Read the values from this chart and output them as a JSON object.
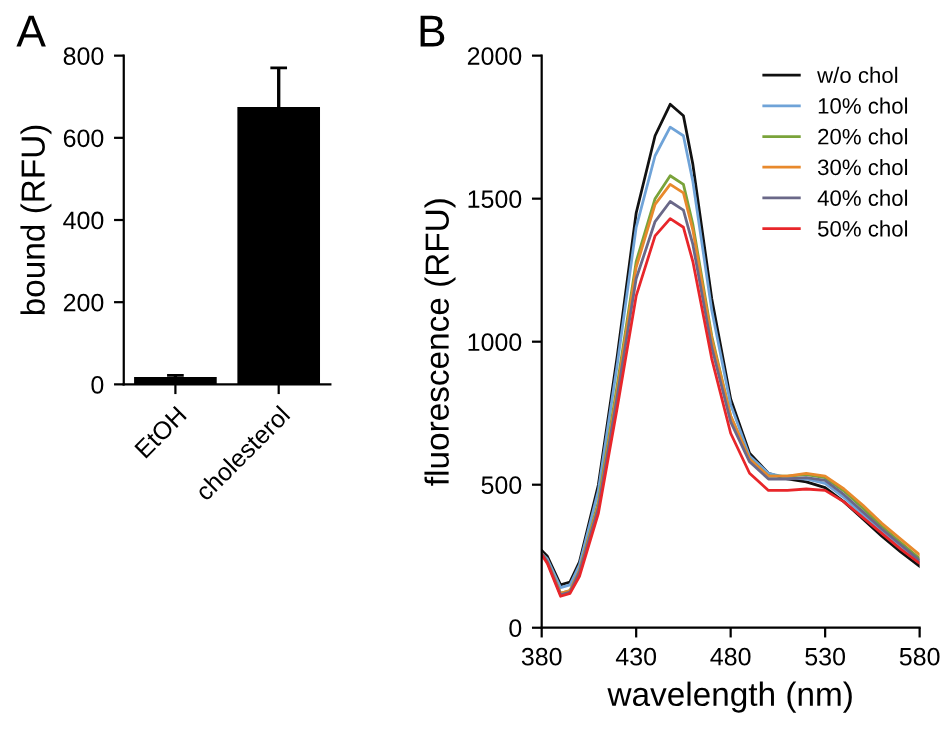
{
  "chart_data": [
    {
      "type": "bar",
      "ylabel": "bound (RFU)",
      "annotations": [
        "A"
      ],
      "categories": [
        "EtOH",
        "cholesterol"
      ],
      "values": [
        18,
        675
      ],
      "errors": [
        4,
        95
      ],
      "color": "#000000",
      "ylim": [
        0,
        800
      ],
      "yticks": [
        0,
        200,
        400,
        600,
        800
      ],
      "grid": false,
      "legend": false
    },
    {
      "type": "line",
      "xlabel": "wavelength (nm)",
      "ylabel": "fluorescence (RFU)",
      "annotations": [
        "B"
      ],
      "x": [
        380,
        383,
        390,
        395,
        400,
        410,
        420,
        430,
        440,
        448,
        455,
        460,
        470,
        480,
        490,
        500,
        510,
        520,
        530,
        540,
        550,
        560,
        570,
        580
      ],
      "xlim": [
        380,
        580
      ],
      "xticks": [
        380,
        430,
        480,
        530,
        580
      ],
      "ylim": [
        0,
        2000
      ],
      "yticks": [
        0,
        500,
        1000,
        1500,
        2000
      ],
      "grid": false,
      "legend": "top right",
      "marker": "none",
      "line_style": "solid",
      "series": [
        {
          "name": "w/o chol",
          "color": "#111111",
          "values": [
            270,
            250,
            150,
            160,
            230,
            500,
            950,
            1450,
            1720,
            1830,
            1790,
            1620,
            1150,
            800,
            610,
            540,
            520,
            510,
            490,
            440,
            380,
            320,
            265,
            215
          ]
        },
        {
          "name": "10% chol",
          "color": "#6fa3d8",
          "values": [
            260,
            240,
            140,
            150,
            220,
            480,
            920,
            1400,
            1650,
            1750,
            1720,
            1560,
            1110,
            780,
            600,
            540,
            525,
            520,
            505,
            455,
            395,
            338,
            282,
            228
          ]
        },
        {
          "name": "20% chol",
          "color": "#7aa33a",
          "values": [
            260,
            230,
            120,
            130,
            200,
            440,
            850,
            1280,
            1500,
            1580,
            1550,
            1410,
            1020,
            740,
            590,
            530,
            530,
            535,
            525,
            478,
            418,
            355,
            298,
            242
          ]
        },
        {
          "name": "30% chol",
          "color": "#e8892c",
          "values": [
            260,
            230,
            120,
            130,
            200,
            430,
            830,
            1260,
            1480,
            1550,
            1520,
            1390,
            1010,
            740,
            590,
            530,
            530,
            540,
            530,
            485,
            428,
            365,
            310,
            255
          ]
        },
        {
          "name": "40% chol",
          "color": "#6a6888",
          "values": [
            260,
            230,
            115,
            125,
            195,
            420,
            810,
            1220,
            1420,
            1490,
            1460,
            1340,
            980,
            720,
            580,
            520,
            520,
            525,
            515,
            465,
            405,
            345,
            290,
            235
          ]
        },
        {
          "name": "50% chol",
          "color": "#e8262a",
          "values": [
            255,
            225,
            110,
            120,
            180,
            400,
            770,
            1160,
            1370,
            1430,
            1400,
            1280,
            940,
            680,
            540,
            480,
            480,
            485,
            480,
            440,
            385,
            330,
            275,
            225
          ]
        }
      ]
    }
  ]
}
